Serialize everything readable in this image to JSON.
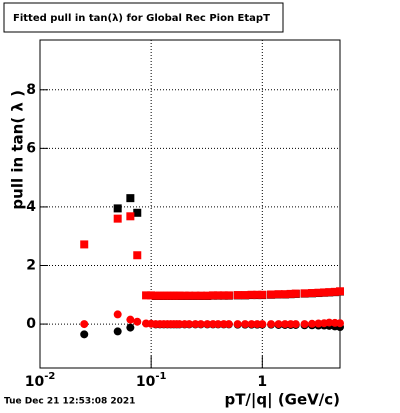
{
  "chart_data": {
    "type": "scatter",
    "title": "Fitted pull in tan(λ) for Global Rec Pion EtapT",
    "x_label": "pT/|q| (GeV/c)",
    "y_label": "pull in tan( λ )",
    "timestamp": "Tue Dec 21 12:53:08 2021",
    "log_x": true,
    "grid": true,
    "xlim": [
      0.01,
      5
    ],
    "ylim": [
      -1.5,
      9.7
    ],
    "xticks": [
      {
        "value": 0.01,
        "label": "10",
        "exponent": "-2"
      },
      {
        "value": 0.1,
        "label": "10",
        "exponent": "-1"
      },
      1
    ],
    "yticks": [
      0,
      2,
      4,
      6,
      8
    ],
    "series": [
      {
        "color": "#000000",
        "marker": "square",
        "x": [
          0.05,
          0.065,
          0.075,
          0.11,
          0.12,
          0.13,
          0.14,
          0.15,
          0.16,
          0.17,
          0.18,
          0.2,
          0.22,
          0.25,
          0.28,
          0.32,
          0.36,
          0.4,
          0.45,
          0.5,
          0.6,
          0.7,
          0.8,
          0.9,
          1,
          1.2,
          1.4,
          1.6,
          1.8,
          2,
          2.4,
          2.8,
          3.2,
          3.6,
          4,
          4.5,
          5
        ],
        "values": [
          3.95,
          4.3,
          3.8,
          0.96,
          0.96,
          0.96,
          0.96,
          0.96,
          0.96,
          0.96,
          0.96,
          0.96,
          0.96,
          0.96,
          0.96,
          0.96,
          0.97,
          0.97,
          0.97,
          0.97,
          0.98,
          0.98,
          0.99,
          0.99,
          0.99,
          1,
          1.01,
          1.01,
          1.02,
          1.03,
          1.04,
          1.05,
          1.06,
          1.07,
          1.08,
          1.09,
          1.11
        ]
      },
      {
        "color": "#000000",
        "marker": "circle",
        "x": [
          0.025,
          0.05,
          0.065,
          0.11,
          0.12,
          0.13,
          0.14,
          0.15,
          0.16,
          0.17,
          0.18,
          0.2,
          0.22,
          0.25,
          0.28,
          0.32,
          0.36,
          0.4,
          0.45,
          0.5,
          0.6,
          0.7,
          0.8,
          0.9,
          1,
          1.2,
          1.4,
          1.6,
          1.8,
          2,
          2.4,
          2.8,
          3.2,
          3.6,
          4,
          4.5,
          5
        ],
        "values": [
          -0.35,
          -0.25,
          -0.12,
          -0.01,
          -0.01,
          -0.01,
          -0.01,
          -0.01,
          -0.01,
          -0.01,
          -0.01,
          -0.01,
          -0.01,
          -0.01,
          -0.01,
          -0.01,
          -0.01,
          -0.01,
          -0.01,
          -0.01,
          -0.02,
          -0.02,
          -0.02,
          -0.02,
          -0.02,
          -0.02,
          -0.03,
          -0.03,
          -0.03,
          -0.03,
          -0.04,
          -0.04,
          -0.05,
          -0.05,
          -0.06,
          -0.08,
          -0.1
        ]
      },
      {
        "color": "#ff0000",
        "marker": "square",
        "x": [
          0.025,
          0.05,
          0.065,
          0.075,
          0.09,
          0.1,
          0.11,
          0.12,
          0.13,
          0.14,
          0.15,
          0.16,
          0.17,
          0.18,
          0.2,
          0.22,
          0.25,
          0.28,
          0.32,
          0.36,
          0.4,
          0.45,
          0.5,
          0.6,
          0.7,
          0.8,
          0.9,
          1,
          1.2,
          1.4,
          1.6,
          1.8,
          2,
          2.4,
          2.8,
          3.2,
          3.6,
          4,
          4.5,
          5
        ],
        "values": [
          2.72,
          3.6,
          3.68,
          2.35,
          0.98,
          0.98,
          0.97,
          0.97,
          0.97,
          0.97,
          0.97,
          0.97,
          0.97,
          0.97,
          0.97,
          0.97,
          0.97,
          0.97,
          0.97,
          0.98,
          0.98,
          0.98,
          0.98,
          0.99,
          0.99,
          1,
          1,
          1,
          1.01,
          1.02,
          1.02,
          1.03,
          1.04,
          1.05,
          1.06,
          1.07,
          1.08,
          1.09,
          1.1,
          1.12
        ]
      },
      {
        "color": "#ff0000",
        "marker": "circle",
        "x": [
          0.025,
          0.05,
          0.065,
          0.075,
          0.09,
          0.1,
          0.11,
          0.12,
          0.13,
          0.14,
          0.15,
          0.16,
          0.17,
          0.18,
          0.2,
          0.22,
          0.25,
          0.28,
          0.32,
          0.36,
          0.4,
          0.45,
          0.5,
          0.6,
          0.7,
          0.8,
          0.9,
          1,
          1.2,
          1.4,
          1.6,
          1.8,
          2,
          2.4,
          2.8,
          3.2,
          3.6,
          4,
          4.5,
          5
        ],
        "values": [
          0,
          0.33,
          0.15,
          0.08,
          0.02,
          0.01,
          0,
          0,
          0,
          0,
          0,
          0,
          0,
          0,
          0,
          0,
          0,
          0,
          0,
          0,
          0,
          0,
          0,
          0,
          0,
          0,
          0,
          0,
          0,
          0,
          0,
          0,
          0,
          0,
          0.01,
          0.02,
          0.03,
          0.05,
          0.04,
          0.03
        ]
      }
    ]
  }
}
